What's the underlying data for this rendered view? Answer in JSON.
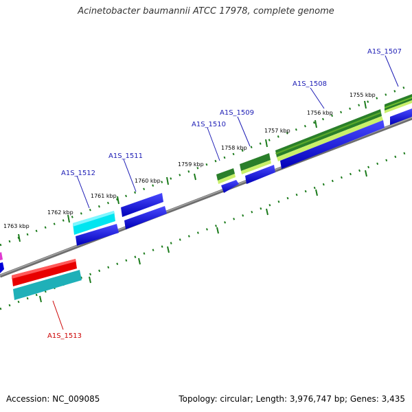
{
  "title": "Acinetobacter baumannii ATCC 17978, complete genome",
  "footer": {
    "accession": "Accession: NC_009085",
    "summary": "Topology: circular; Length: 3,976,747 bp; Genes: 3,435"
  },
  "colors": {
    "backbone": "#777777",
    "ticks": "#1a7a1a",
    "label_blue": "#1a1ab4",
    "label_red": "#cc0000"
  },
  "tick_labels": [
    "1755 kbp",
    "1756 kbp",
    "1757 kbp",
    "1758 kbp",
    "1759 kbp",
    "1760 kbp",
    "1761 kbp",
    "1762 kbp",
    "1763 kbp"
  ],
  "gene_labels": [
    {
      "text": "A1S_1507",
      "color": "#1a1ab4"
    },
    {
      "text": "A1S_1508",
      "color": "#1a1ab4"
    },
    {
      "text": "A1S_1509",
      "color": "#1a1ab4"
    },
    {
      "text": "A1S_1510",
      "color": "#1a1ab4"
    },
    {
      "text": "A1S_1511",
      "color": "#1a1ab4"
    },
    {
      "text": "A1S_1512",
      "color": "#1a1ab4"
    },
    {
      "text": "A1S_1513",
      "color": "#cc0000"
    }
  ]
}
